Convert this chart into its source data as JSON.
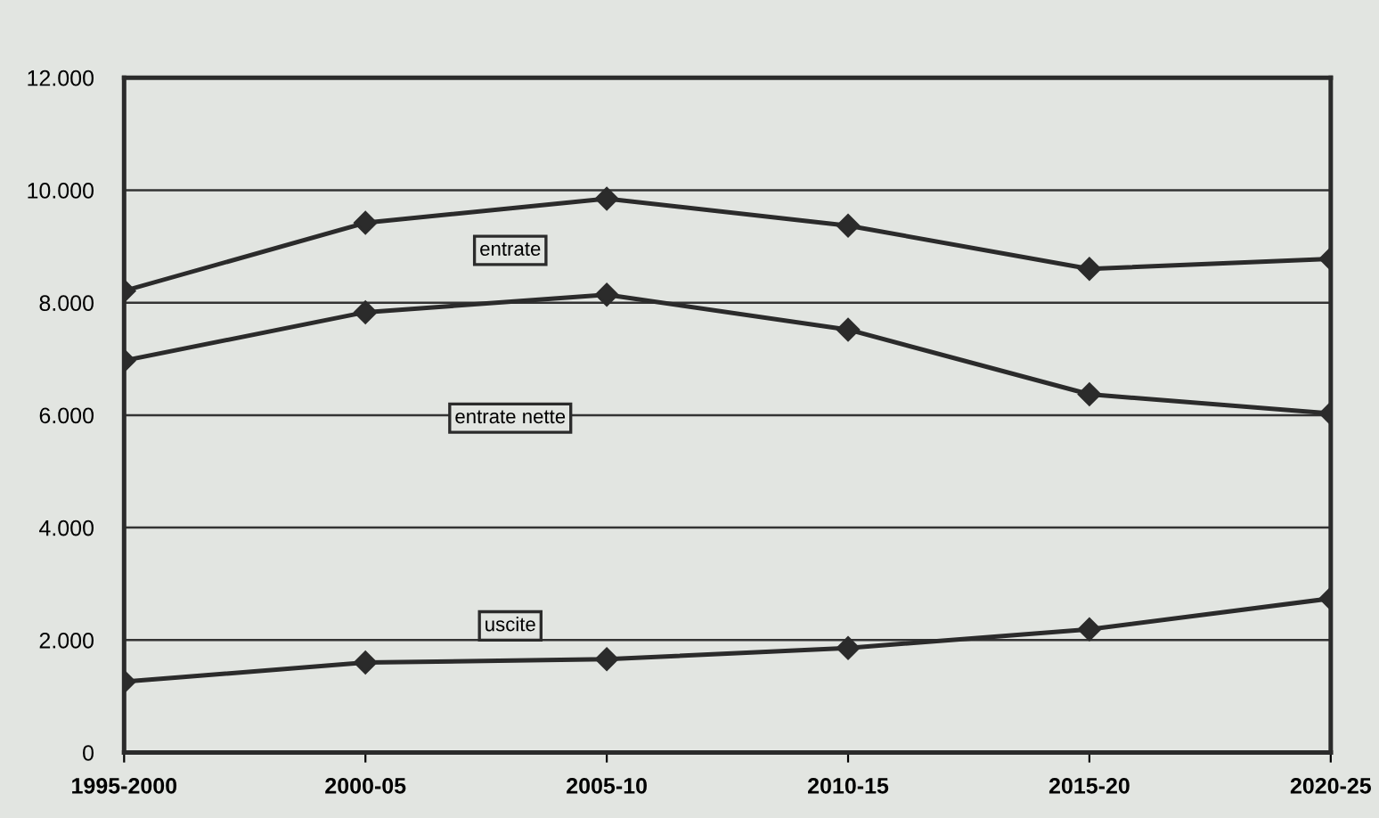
{
  "chart_data": {
    "type": "line",
    "categories": [
      "1995-2000",
      "2000-05",
      "2005-10",
      "2010-15",
      "2015-20",
      "2020-25"
    ],
    "series": [
      {
        "name": "entrate",
        "color": "#2b2b2b",
        "values": [
          8210,
          9420,
          9850,
          9370,
          8600,
          8780
        ]
      },
      {
        "name": "entrate nette",
        "color": "#2b2b2b",
        "values": [
          6970,
          7830,
          8140,
          7520,
          6370,
          6030
        ]
      },
      {
        "name": "uscite",
        "color": "#2b2b2b",
        "values": [
          1260,
          1600,
          1660,
          1860,
          2190,
          2740
        ]
      }
    ],
    "ylim": [
      0,
      12000
    ],
    "yticks": [
      {
        "value": 0,
        "label": "0"
      },
      {
        "value": 2000,
        "label": "2.000"
      },
      {
        "value": 4000,
        "label": "4.000"
      },
      {
        "value": 6000,
        "label": "6.000"
      },
      {
        "value": 8000,
        "label": "8.000"
      },
      {
        "value": 10000,
        "label": "10.000"
      },
      {
        "value": 12000,
        "label": "12.000"
      }
    ],
    "grid": "y",
    "legend": false,
    "marker": "diamond",
    "line_style": "solid"
  }
}
